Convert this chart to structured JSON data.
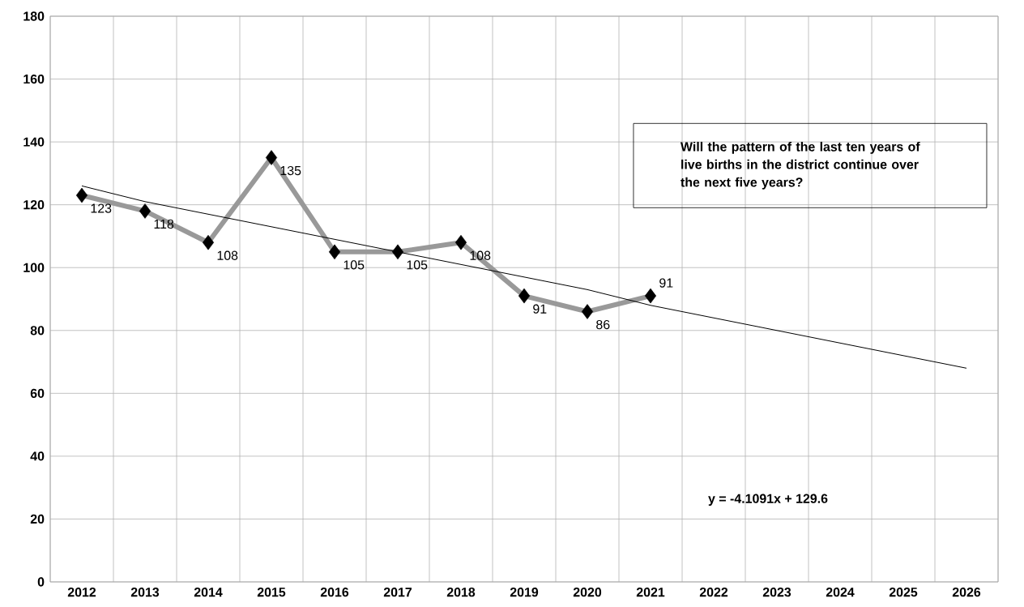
{
  "chart_data": {
    "type": "line",
    "categories": [
      "2012",
      "2013",
      "2014",
      "2015",
      "2016",
      "2017",
      "2018",
      "2019",
      "2020",
      "2021",
      "2022",
      "2023",
      "2024",
      "2025",
      "2026"
    ],
    "series": [
      {
        "values": [
          123,
          118,
          108,
          135,
          105,
          105,
          108,
          91,
          86,
          91,
          null,
          null,
          null,
          null,
          null
        ],
        "value_labels": [
          "123",
          "118",
          "108",
          "135",
          "105",
          "105",
          "108",
          "91",
          "86",
          "91",
          null,
          null,
          null,
          null,
          null
        ],
        "color": "#999999",
        "marker": "diamond"
      },
      {
        "type": "line",
        "values": [
          126,
          121,
          117,
          113,
          109,
          105,
          101,
          97,
          93,
          88,
          84,
          80,
          76,
          72,
          68
        ],
        "color": "#000000",
        "marker": "none"
      }
    ],
    "ylim": [
      0,
      180
    ],
    "yticks": [
      0,
      20,
      40,
      60,
      80,
      100,
      120,
      140,
      160,
      180
    ],
    "grid": true,
    "annotations": [
      "Will the pattern of the last ten years of live births in the district continue over the next five years?",
      "y = -4.1091x + 129.6"
    ]
  }
}
